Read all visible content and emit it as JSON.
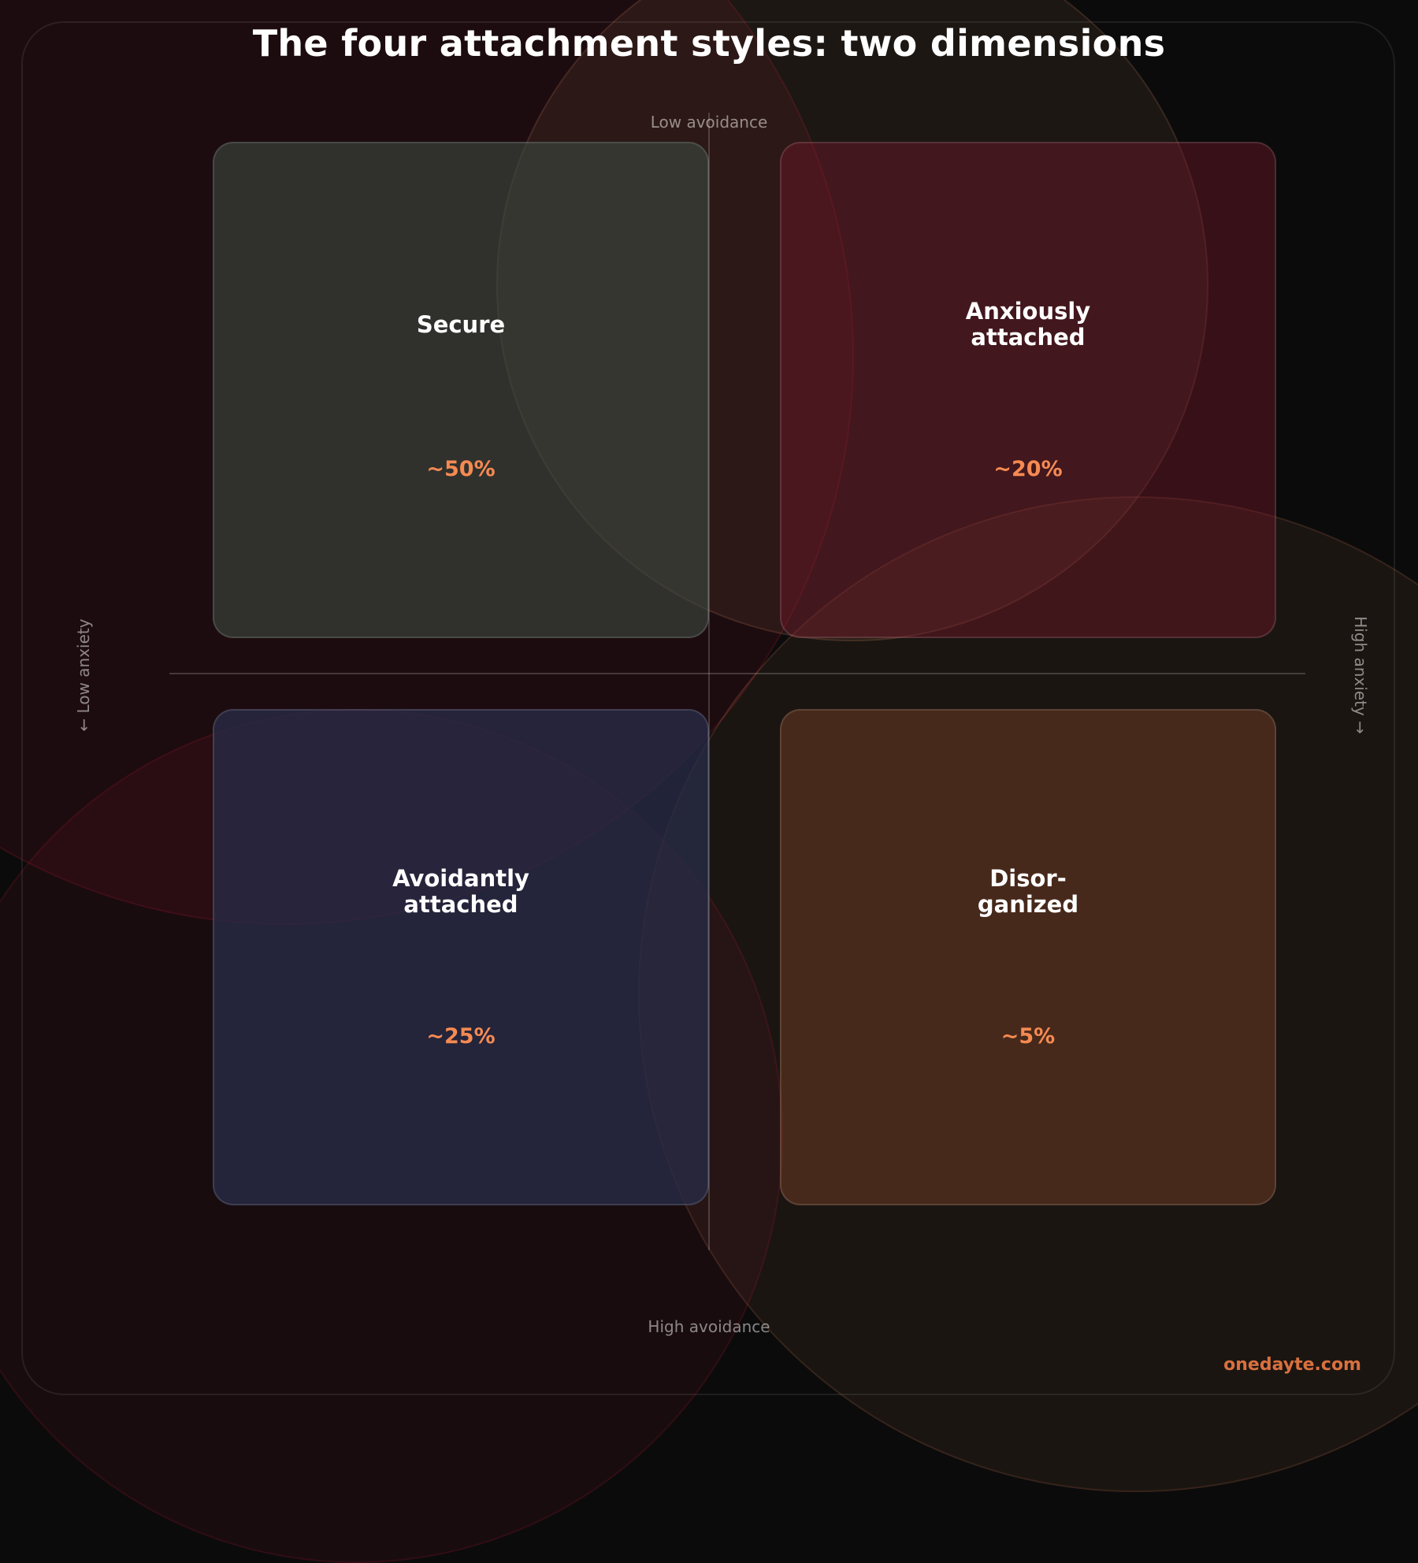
{
  "title": "The four attachment styles: two dimensions",
  "axes": {
    "top": "Low avoidance",
    "bottom": "High avoidance",
    "left": "← Low anxiety",
    "right": "High anxiety →"
  },
  "quadrants": [
    {
      "position": "top-left",
      "name": "Secure",
      "percent": "~50%",
      "color": "#2f3331"
    },
    {
      "position": "top-right",
      "name": "Anxiously\nattached",
      "percent": "~20%",
      "color": "#451820"
    },
    {
      "position": "bottom-left",
      "name": "Avoidantly\nattached",
      "percent": "~25%",
      "color": "#242437"
    },
    {
      "position": "bottom-right",
      "name": "Disor-\nganized",
      "percent": "~5%",
      "color": "#492c1f"
    }
  ],
  "colors": {
    "background": "#0b0b0b",
    "percent_accent": "#f58a52",
    "brand_accent": "#d9703f"
  },
  "brand": "onedayte.com"
}
